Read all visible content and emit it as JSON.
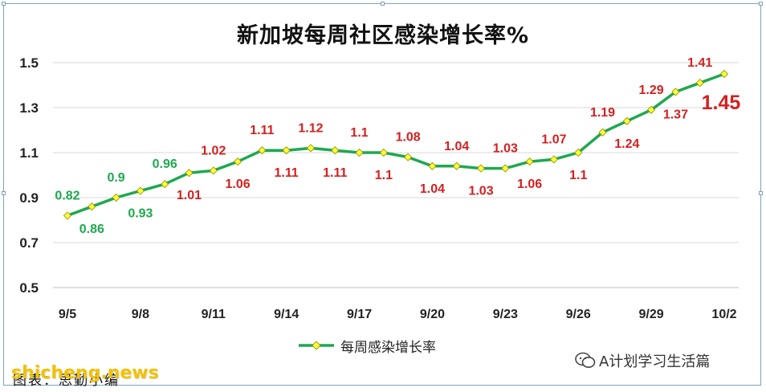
{
  "chart_data": {
    "type": "line",
    "title": "新加坡每周社区感染增长率%",
    "xlabel": "",
    "ylabel": "",
    "ylim": [
      0.5,
      1.5
    ],
    "yticks": [
      "0.5",
      "0.7",
      "0.9",
      "1.1",
      "1.3",
      "1.5"
    ],
    "xticks": [
      "9/5",
      "9/8",
      "9/11",
      "9/14",
      "9/17",
      "9/20",
      "9/23",
      "9/26",
      "9/29",
      "10/2"
    ],
    "grid": "horizontal",
    "legend_position": "bottom-center",
    "series": [
      {
        "name": "每周感染增长率",
        "color": "#1fa84f",
        "marker_color": "#ffff33",
        "values": [
          0.82,
          0.86,
          0.9,
          0.93,
          0.96,
          1.01,
          1.02,
          1.06,
          1.11,
          1.11,
          1.12,
          1.11,
          1.1,
          1.1,
          1.08,
          1.04,
          1.04,
          1.03,
          1.03,
          1.06,
          1.07,
          1.1,
          1.19,
          1.24,
          1.29,
          1.37,
          1.41,
          1.45
        ],
        "labels": [
          "0.82",
          "0.86",
          "0.9",
          "0.93",
          "0.96",
          "1.01",
          "1.02",
          "1.06",
          "1.11",
          "1.11",
          "1.12",
          "1.11",
          "1.1",
          "1.1",
          "1.08",
          "1.04",
          "1.04",
          "1.03",
          "1.03",
          "1.06",
          "1.07",
          "1.1",
          "1.19",
          "1.24",
          "1.29",
          "1.37",
          "1.41",
          "1.45"
        ],
        "label_positions": [
          "above",
          "below",
          "above",
          "below",
          "above",
          "below",
          "above",
          "below",
          "above",
          "below",
          "above",
          "below",
          "above",
          "below",
          "above",
          "below",
          "above",
          "below",
          "above",
          "below",
          "above",
          "below",
          "above",
          "below",
          "above",
          "below",
          "above",
          "below"
        ],
        "label_colors": [
          "#1fa84f",
          "#1fa84f",
          "#1fa84f",
          "#1fa84f",
          "#1fa84f",
          "#d42020",
          "#d42020",
          "#d42020",
          "#d42020",
          "#d42020",
          "#d42020",
          "#d42020",
          "#d42020",
          "#d42020",
          "#d42020",
          "#d42020",
          "#d42020",
          "#d42020",
          "#d42020",
          "#d42020",
          "#d42020",
          "#d42020",
          "#d42020",
          "#d42020",
          "#d42020",
          "#d42020",
          "#d42020",
          "#d42020"
        ],
        "highlight_last": true
      }
    ]
  },
  "legend": {
    "label": "每周感染增长率"
  },
  "source_note": "图表：思勤小编",
  "watermark": {
    "account": "A计划学习生活篇",
    "site": "shicheng.news"
  },
  "colors": {
    "line": "#1fa84f",
    "marker": "#ffff33",
    "label_red": "#d42020",
    "label_green": "#1fa84f",
    "grid": "#d9d9d9"
  }
}
